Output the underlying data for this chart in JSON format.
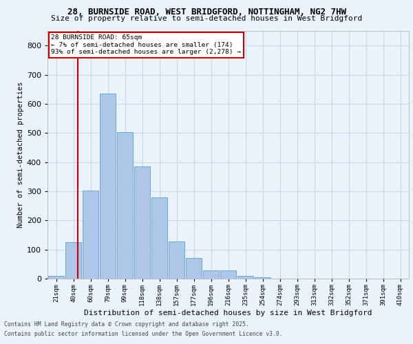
{
  "title_line1": "28, BURNSIDE ROAD, WEST BRIDGFORD, NOTTINGHAM, NG2 7HW",
  "title_line2": "Size of property relative to semi-detached houses in West Bridgford",
  "xlabel": "Distribution of semi-detached houses by size in West Bridgford",
  "ylabel": "Number of semi-detached properties",
  "categories": [
    "21sqm",
    "40sqm",
    "60sqm",
    "79sqm",
    "99sqm",
    "118sqm",
    "138sqm",
    "157sqm",
    "177sqm",
    "196sqm",
    "216sqm",
    "235sqm",
    "254sqm",
    "274sqm",
    "293sqm",
    "313sqm",
    "332sqm",
    "352sqm",
    "371sqm",
    "391sqm",
    "410sqm"
  ],
  "values": [
    10,
    125,
    302,
    635,
    502,
    385,
    278,
    128,
    70,
    28,
    28,
    10,
    5,
    0,
    0,
    0,
    0,
    0,
    0,
    0,
    0
  ],
  "bar_color": "#aec6e8",
  "bar_edge_color": "#5a9fd4",
  "property_line_x": 65,
  "annotation_title": "28 BURNSIDE ROAD: 65sqm",
  "annotation_line2": "← 7% of semi-detached houses are smaller (174)",
  "annotation_line3": "93% of semi-detached houses are larger (2,278) →",
  "vline_color": "#cc0000",
  "annotation_box_color": "#ffffff",
  "annotation_box_edge": "#cc0000",
  "grid_color": "#c8d8e8",
  "background_color": "#eaf2fb",
  "footer_line1": "Contains HM Land Registry data © Crown copyright and database right 2025.",
  "footer_line2": "Contains public sector information licensed under the Open Government Licence v3.0.",
  "ylim": [
    0,
    850
  ],
  "yticks": [
    0,
    100,
    200,
    300,
    400,
    500,
    600,
    700,
    800
  ]
}
